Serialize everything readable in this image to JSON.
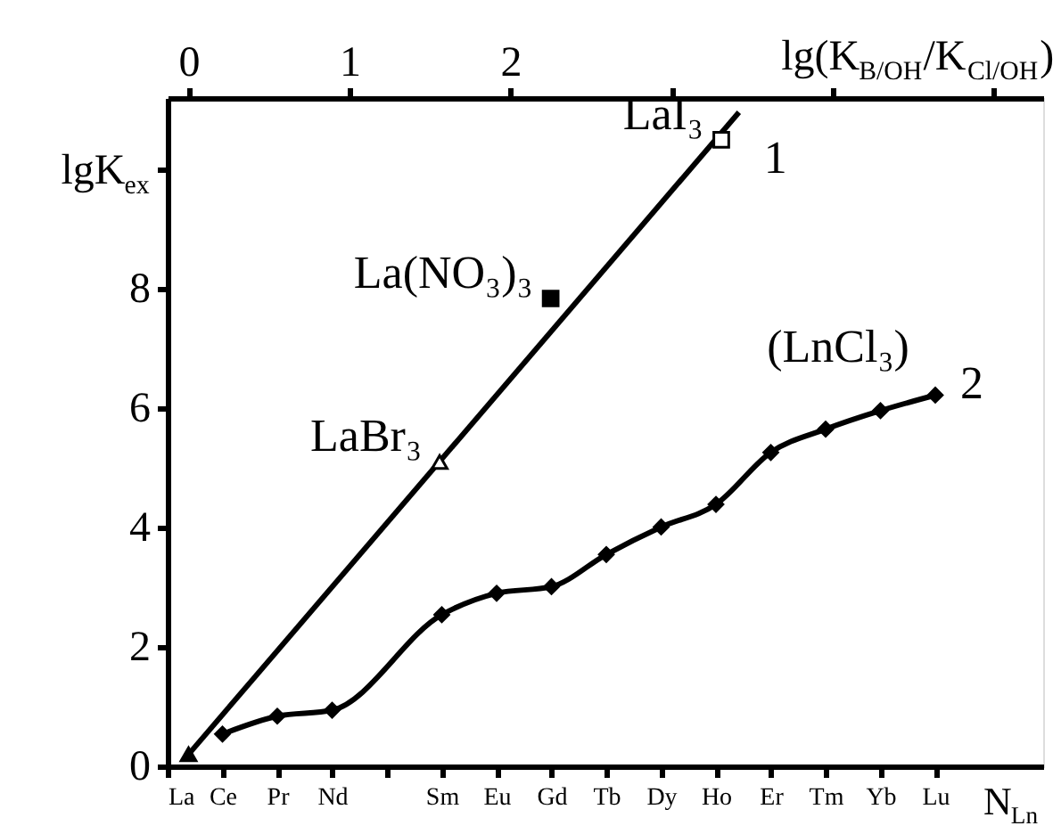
{
  "chart_data": {
    "type": "line",
    "categories": [
      "La",
      "Ce",
      "Pr",
      "Nd",
      null,
      "Sm",
      "Eu",
      "Gd",
      "Tb",
      "Dy",
      "Ho",
      "Er",
      "Tm",
      "Yb",
      "Lu"
    ],
    "xlabel": "N$_{Ln}$",
    "x2label": "lg(K$_{B/OH}$/K$_{Cl/OH}$)",
    "x2lim": [
      -0.13,
      5.31
    ],
    "x2ticks": [
      0,
      1,
      2,
      {
        "value": 3,
        "label": null
      },
      {
        "value": 4,
        "label": null
      },
      {
        "value": 5,
        "label": null
      }
    ],
    "ylim": [
      0,
      11.2
    ],
    "yticks": [
      0,
      2,
      4,
      6,
      8,
      {
        "value": 10,
        "label": "lgK$_{ex}$"
      }
    ],
    "grid": false,
    "series": [
      {
        "name": "1",
        "axis": "x2",
        "x": [
          0,
          3.42
        ],
        "values": [
          0.2,
          10.96
        ],
        "color": "#000000",
        "marker": "none"
      },
      {
        "name": "2",
        "values": [
          null,
          0.54,
          0.84,
          0.94,
          null,
          2.54,
          2.9,
          3.01,
          3.55,
          4.01,
          4.39,
          5.26,
          5.65,
          5.96,
          6.22
        ],
        "color": "#000000",
        "marker": "diamond"
      },
      {
        "type": "scatter",
        "axis": "x2",
        "x": [
          0
        ],
        "values": [
          0.2
        ],
        "color": "#000000",
        "marker": "triangle"
      },
      {
        "name": "LaBr₃",
        "type": "scatter",
        "axis": "x2",
        "x": [
          1.56
        ],
        "values": [
          5.1
        ],
        "color": "#ffffff",
        "marker": "triangle"
      },
      {
        "name": "La(NO₃)₃",
        "type": "scatter",
        "axis": "x2",
        "x": [
          2.25
        ],
        "values": [
          7.84
        ],
        "color": "#000000",
        "marker": "square"
      },
      {
        "name": "LaI₃",
        "type": "scatter",
        "axis": "x2",
        "x": [
          3.31
        ],
        "values": [
          10.5
        ],
        "color": "#ffffff",
        "marker": "square"
      }
    ],
    "annotations": [
      "(LnCl₃)"
    ]
  }
}
